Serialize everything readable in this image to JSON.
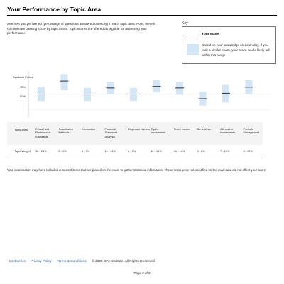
{
  "page": {
    "title": "Your Performance by Topic Area",
    "intro": "See how you performed (percentage of questions answered correctly) in each topic area. Note, there is no minimum passing score by topic areas. Topic scores are offered as a guide for assessing your performance."
  },
  "key": {
    "title": "Key",
    "score_label": "Your score",
    "range_text": "Based on your knowledge on exam day, if you took a similar exam, your score would likely fall within this range",
    "swatch_color": "#d2e6f6",
    "line_color": "#333333"
  },
  "chart_labels": {
    "available_points": "Available Points",
    "tick_70": "70%",
    "tick_50": "50%"
  },
  "table": {
    "area_header": "Topic Area",
    "weight_header": "Topic Weight"
  },
  "chart_data": {
    "type": "range-plot",
    "categories": [
      "Ethical and Professional Standards",
      "Quantitative Methods",
      "Economics",
      "Financial Statement Analysis",
      "Corporate Issuers",
      "Equity Investments",
      "Fixed Income",
      "Derivatives",
      "Alternative Investments",
      "Portfolio Management"
    ],
    "weights": [
      "15 - 20%",
      "6 - 9%",
      "6 - 9%",
      "11 - 14%",
      "6 - 9%",
      "11 - 14%",
      "11 - 14%",
      "5 - 8%",
      "7 - 10%",
      "8 - 12%"
    ],
    "scores": [
      70,
      87,
      70,
      78,
      70,
      80,
      78,
      64,
      71,
      79
    ],
    "range_low": [
      61,
      75,
      61,
      70,
      61,
      72,
      69,
      55,
      59,
      70
    ],
    "range_high": [
      79,
      96,
      78,
      86,
      78,
      88,
      86,
      73,
      82,
      88
    ],
    "ticks": [
      70,
      50
    ],
    "ylim": [
      40,
      100
    ]
  },
  "note": "Your examination may have included unscored items that are placed on the exam to gather statistical information. These items were not identified on the exam and did not affect your score.",
  "footer": {
    "links": [
      "Contact Us",
      "Privacy Policy",
      "Terms & Conditions"
    ],
    "copyright": "© 2025 CFA Institute. All Rights Reserved."
  },
  "page_number": "Page 2 of 2"
}
